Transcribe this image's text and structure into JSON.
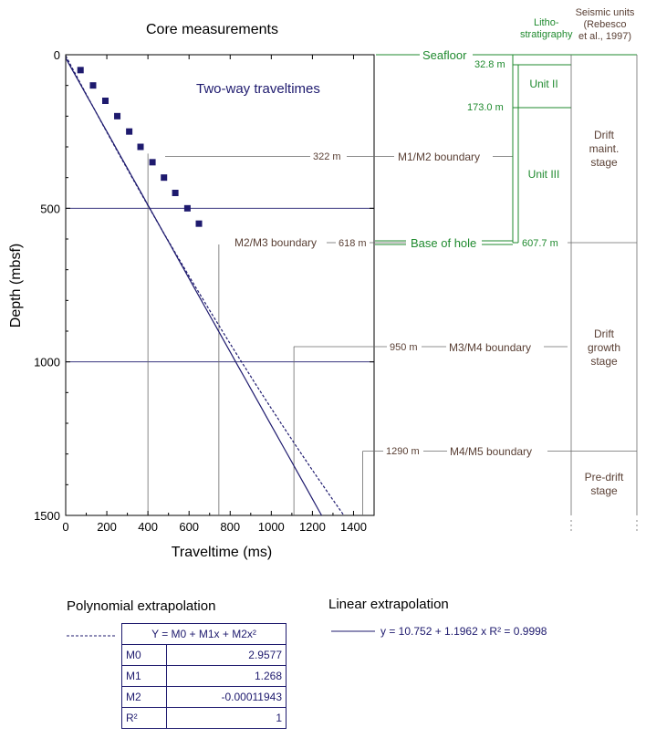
{
  "titles": {
    "core": "Core measurements",
    "litho": [
      "Litho-",
      "stratigraphy"
    ],
    "seismic": [
      "Seismic units",
      "(Rebesco",
      "et al., 1997)"
    ]
  },
  "chart_data": {
    "type": "line",
    "title": "Two-way traveltimes",
    "xlabel": "Traveltime (ms)",
    "ylabel": "Depth (mbsf)",
    "xlim": [
      0,
      1500
    ],
    "ylim": [
      1500,
      0
    ],
    "xticks": [
      0,
      200,
      400,
      600,
      800,
      1000,
      1200,
      1400
    ],
    "yticks": [
      0,
      500,
      1000,
      1500
    ],
    "measurements": {
      "x": [
        72,
        133,
        193,
        251,
        309,
        364,
        422,
        478,
        533,
        592,
        648
      ],
      "y": [
        50,
        100,
        150,
        200,
        250,
        300,
        350,
        400,
        450,
        500,
        550
      ]
    },
    "linear_fit": {
      "intercept": 10.752,
      "slope": 1.1962
    },
    "polynomial_fit": {
      "M0": 2.9577,
      "M1": 1.268,
      "M2": -0.00011943
    },
    "boundary_markers": [
      {
        "depth": 322,
        "time": 400
      },
      {
        "depth": 618,
        "time": 745
      },
      {
        "depth": 950,
        "time": 1110
      },
      {
        "depth": 1290,
        "time": 1445
      }
    ],
    "grid_depths": [
      500,
      1000
    ]
  },
  "annotations": {
    "seafloor": "Seafloor",
    "boundaries": [
      {
        "depth_label": "322 m",
        "name": "M1/M2 boundary"
      },
      {
        "depth_label": "618 m",
        "name": "M2/M3 boundary"
      },
      {
        "depth_label": "950 m",
        "name": "M3/M4 boundary"
      },
      {
        "depth_label": "1290 m",
        "name": "M4/M5 boundary"
      }
    ],
    "base_of_hole": "Base of hole",
    "units": [
      "Unit II",
      "Unit III"
    ],
    "unit_depths": [
      "32.8 m",
      "173.0 m",
      "607.7 m"
    ],
    "seismic_units": [
      [
        "Drift",
        "maint.",
        "stage"
      ],
      [
        "Drift",
        "growth",
        "stage"
      ],
      [
        "Pre-drift",
        "stage"
      ]
    ]
  },
  "legend": {
    "poly_title": "Polynomial extrapolation",
    "linear_title": "Linear extrapolation",
    "linear_eq": "y = 10.752 + 1.1962 x R² = 0.9998",
    "equation": "Y = M0 + M1x + M2x²",
    "rows": [
      {
        "name": "M0",
        "value": "2.9577"
      },
      {
        "name": "M1",
        "value": "1.268"
      },
      {
        "name": "M2",
        "value": "-0.00011943"
      },
      {
        "name": "R²",
        "value": "1"
      }
    ]
  },
  "colors": {
    "navy": "#1e1a6e",
    "green": "#1f8a2e",
    "brown": "#5a4035",
    "grey": "#6a6a6a"
  }
}
